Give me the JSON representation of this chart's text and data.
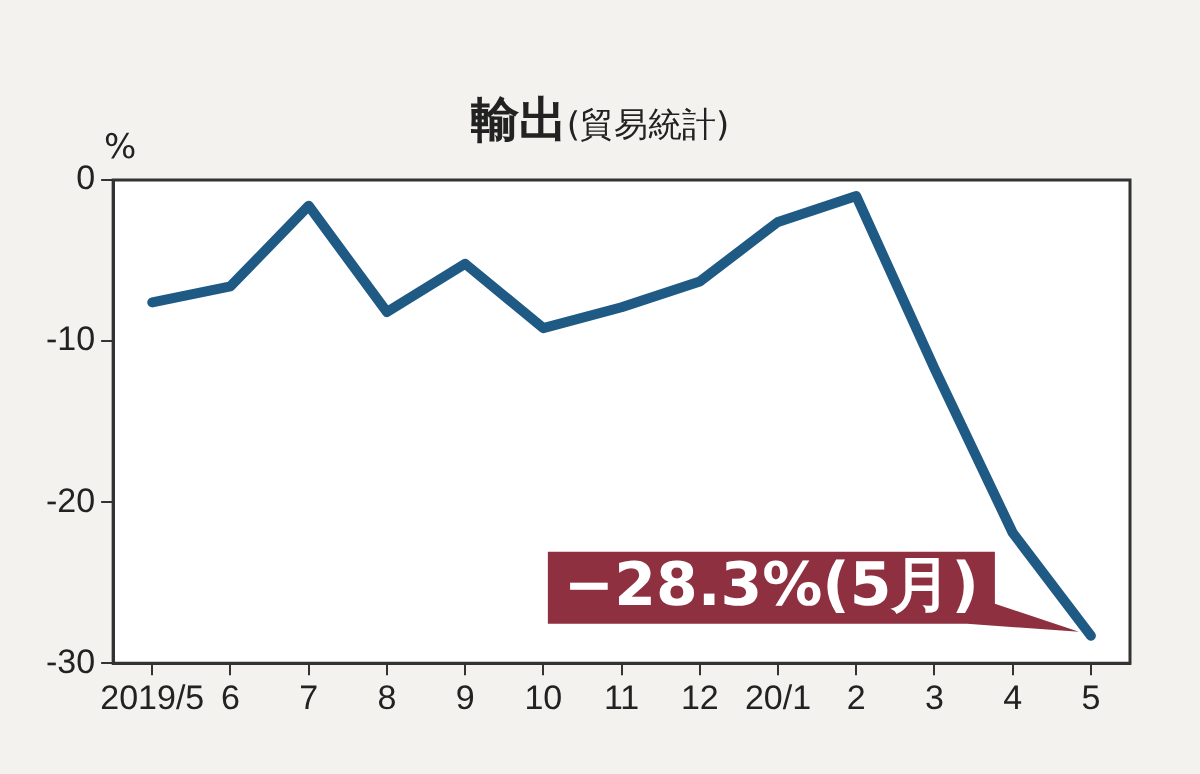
{
  "chart_data": {
    "type": "line",
    "title": "輸出",
    "subtitle": "(貿易統計)",
    "ylabel": "%",
    "categories": [
      "2019/5",
      "6",
      "7",
      "8",
      "9",
      "10",
      "11",
      "12",
      "20/1",
      "2",
      "3",
      "4",
      "5"
    ],
    "series": [
      {
        "color": "#1f5a85",
        "values": [
          -7.6,
          -6.6,
          -1.6,
          -8.2,
          -5.2,
          -9.2,
          -7.9,
          -6.3,
          -2.6,
          -1.0,
          -11.7,
          -21.9,
          -28.3
        ]
      }
    ],
    "ylim": [
      -30,
      0
    ],
    "yticks": [
      -30,
      -20,
      -10,
      0
    ],
    "grid": false,
    "legend": false,
    "marker": "none",
    "line_style": "solid",
    "annotations": [
      {
        "text": "−28.3%(5月)",
        "x": "5",
        "y": -28.3
      }
    ]
  }
}
